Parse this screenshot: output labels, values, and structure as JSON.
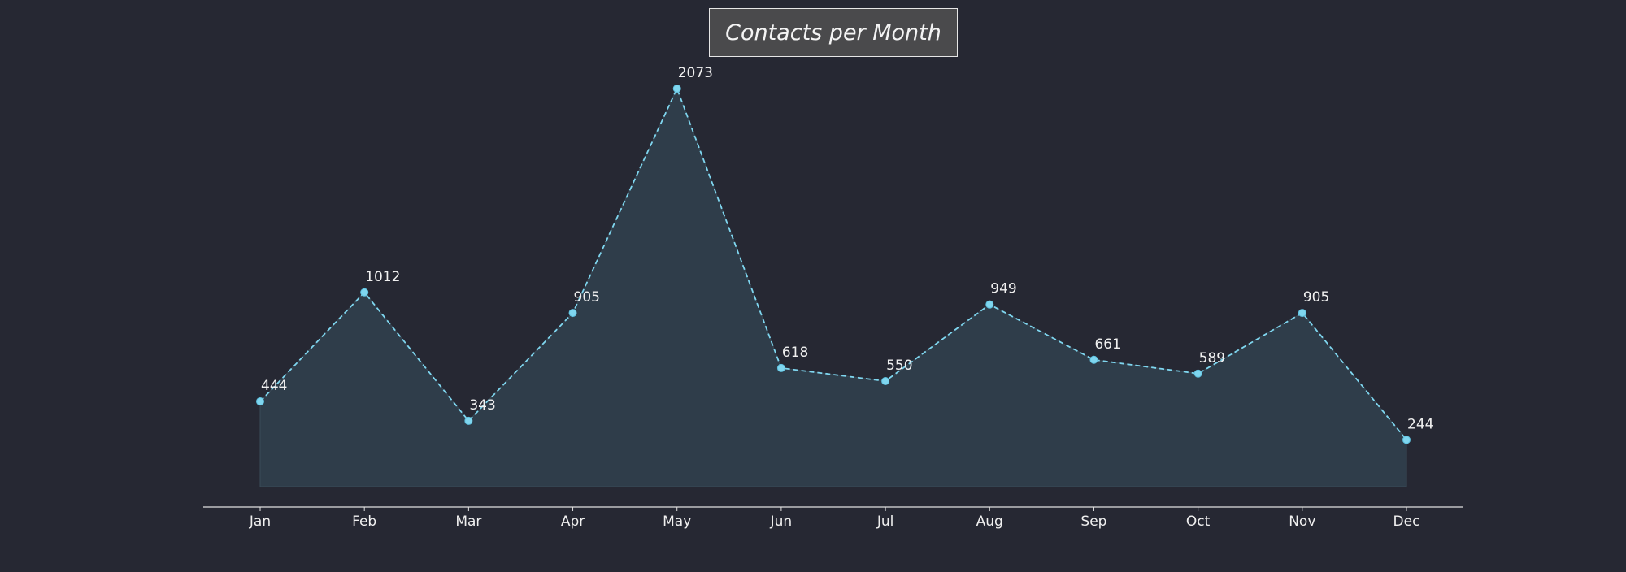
{
  "chart_data": {
    "type": "area",
    "title": "Contacts per Month",
    "xlabel": "",
    "ylabel": "",
    "categories": [
      "Jan",
      "Feb",
      "Mar",
      "Apr",
      "May",
      "Jun",
      "Jul",
      "Aug",
      "Sep",
      "Oct",
      "Nov",
      "Dec"
    ],
    "series": [
      {
        "values": [
          444,
          1012,
          343,
          905,
          2073,
          618,
          550,
          949,
          661,
          589,
          905,
          244
        ]
      }
    ],
    "ylim": [
      -100,
      2300
    ],
    "y_axis_visible": false,
    "grid": false,
    "legend": "none",
    "line_style": "dashed",
    "markers": "circle",
    "data_labels": true,
    "colors": {
      "background": "#262833",
      "line": "#7fd6ef",
      "fill": "#2f3d4a",
      "text": "#f0f0f0",
      "axis": "#e0e0e0",
      "title_box": "#4a4a4c",
      "title_border": "#e6e6e6"
    }
  }
}
